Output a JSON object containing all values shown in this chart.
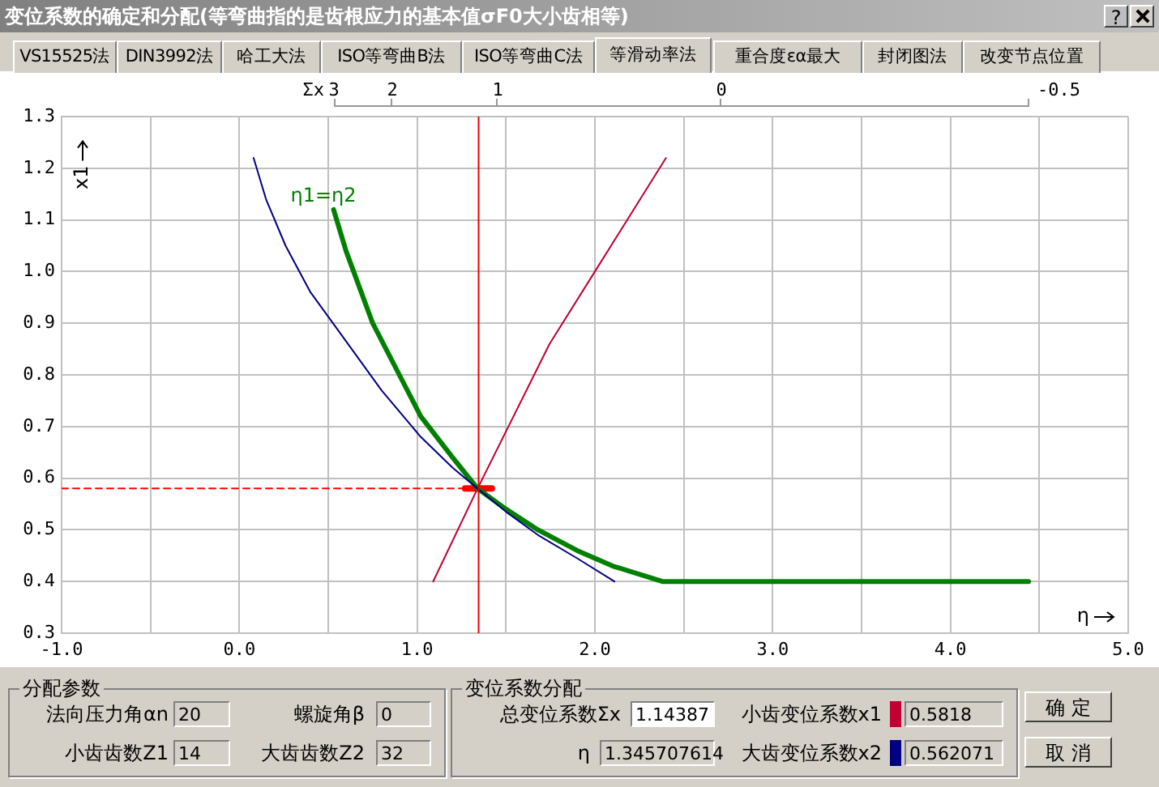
{
  "chart_data": {
    "type": "line",
    "title": "变位系数的确定和分配(等弯曲指的是齿根应力的基本值σF0大小齿相等)",
    "xlabel": "η",
    "ylabel": "x1",
    "xlim": [
      -1,
      5
    ],
    "ylim": [
      0.3,
      1.3
    ],
    "xticks": [
      {
        "value": -1,
        "label": "-1.0"
      },
      {
        "value": -0.5,
        "label": null
      },
      {
        "value": 0,
        "label": "0.0"
      },
      {
        "value": 0.5,
        "label": null
      },
      {
        "value": 1,
        "label": "1.0"
      },
      {
        "value": 1.5,
        "label": null
      },
      {
        "value": 2,
        "label": "2.0"
      },
      {
        "value": 2.5,
        "label": null
      },
      {
        "value": 3,
        "label": "3.0"
      },
      {
        "value": 3.5,
        "label": null
      },
      {
        "value": 4,
        "label": "4.0"
      },
      {
        "value": 4.5,
        "label": null
      },
      {
        "value": 5,
        "label": "5.0"
      }
    ],
    "yticks": [
      0.3,
      0.4,
      0.5,
      0.6,
      0.7,
      0.8,
      0.9,
      {
        "value": 1,
        "label": "1.0"
      },
      1.1,
      1.2,
      1.3
    ],
    "grid": true,
    "legend": false,
    "marker": "none",
    "series": [
      {
        "color": "#000080",
        "x": [
          0.08,
          0.15,
          0.26,
          0.4,
          0.59,
          0.8,
          1.02,
          1.2,
          1.34,
          1.5,
          1.68,
          1.9,
          2.11
        ],
        "values": [
          1.22,
          1.14,
          1.05,
          0.96,
          0.87,
          0.77,
          0.68,
          0.62,
          0.58,
          0.535,
          0.49,
          0.445,
          0.4
        ]
      },
      {
        "name": "η1=η2",
        "color": "#008000",
        "x": [
          0.53,
          0.6,
          0.75,
          0.9,
          1.02,
          1.2,
          1.34,
          1.5,
          1.68,
          1.9,
          2.1,
          2.38,
          4.44
        ],
        "values": [
          1.12,
          1.04,
          0.9,
          0.8,
          0.72,
          0.64,
          0.58,
          0.54,
          0.5,
          0.46,
          0.43,
          0.4,
          0.4
        ]
      },
      {
        "color": "#c00030",
        "x": [
          1.09,
          1.34,
          1.745,
          2.0,
          2.4
        ],
        "values": [
          0.4,
          0.58,
          0.86,
          1.0,
          1.22
        ]
      },
      {
        "color": "#ff0000",
        "line_style": "dashed",
        "x": [
          -1,
          1.345707614
        ],
        "values": [
          0.58,
          0.58
        ]
      },
      {
        "color": "#ff0000",
        "x": [
          1.27,
          1.42
        ],
        "values": [
          0.58,
          0.58
        ]
      }
    ],
    "ref_lines": [
      {
        "axis": "x",
        "value": 1.345707614,
        "color": "#ee0000"
      }
    ],
    "annotations": [
      "?",
      "VS15525法",
      "DIN3992法",
      "哈工大法",
      "ISO等弯曲B法",
      "ISO等弯曲C法",
      "等滑动率法",
      "重合度εα最大",
      "封闭图法",
      "改变节点位置",
      "分配参数",
      "法向压力角αn",
      "20",
      "螺旋角β",
      "0",
      "小齿齿数Z1",
      "14",
      "大齿齿数Z2",
      "32",
      "变位系数分配",
      "总变位系数Σx",
      "1.14387",
      "η",
      "1.345707614",
      "小齿变位系数x1",
      "0.5818",
      "大齿变位系数x2",
      "0.562071",
      "确 定",
      "取 消",
      "Σx",
      "3",
      "2",
      "1",
      "0",
      "-0.5"
    ]
  }
}
